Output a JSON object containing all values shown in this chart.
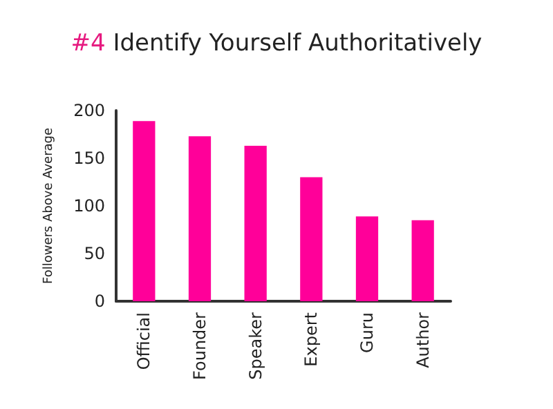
{
  "chart_data": {
    "type": "bar",
    "title": "#4 Identify Yourself Authoritatively",
    "ylabel": "Followers Above Average",
    "categories": [
      "Official",
      "Founder",
      "Speaker",
      "Expert",
      "Guru",
      "Author"
    ],
    "values": [
      189,
      173,
      163,
      130,
      89,
      85
    ],
    "color": "#ff0099",
    "ylim": [
      0,
      200
    ],
    "yticks": [
      0,
      50,
      100,
      150,
      200
    ],
    "grid": false
  }
}
